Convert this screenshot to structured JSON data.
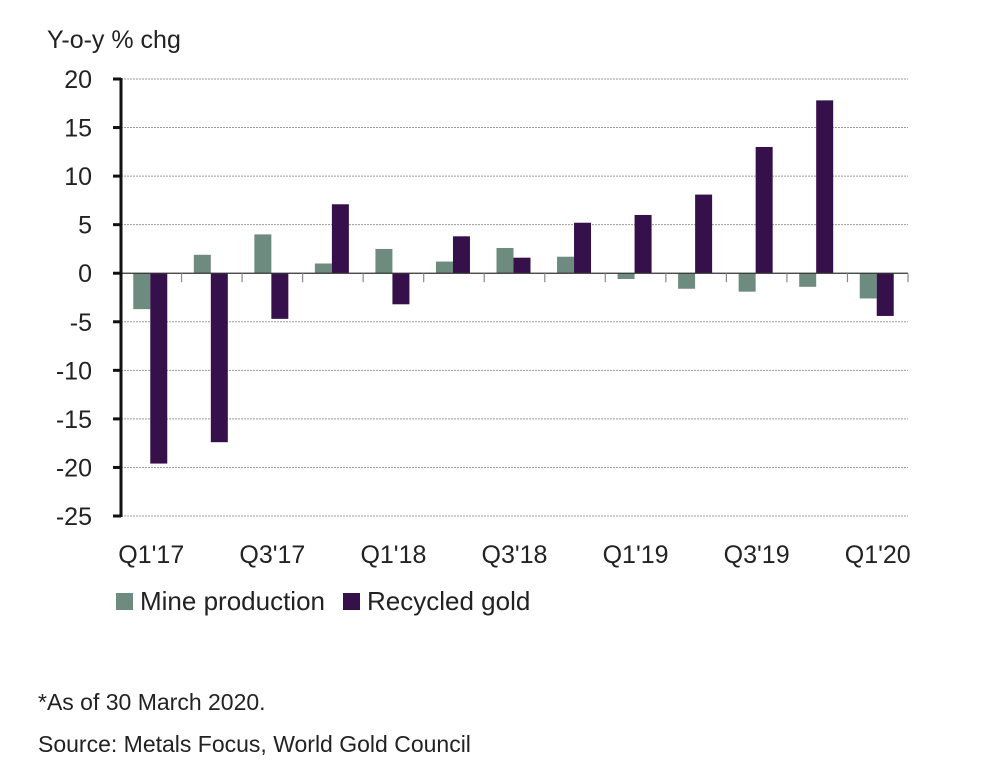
{
  "chart_data": {
    "type": "bar",
    "title": "",
    "ylabel": "Y-o-y % chg",
    "xlabel": "",
    "ylim": [
      -25,
      20
    ],
    "yticks": [
      20,
      15,
      10,
      5,
      0,
      -5,
      -10,
      -15,
      -20,
      -25
    ],
    "grid": true,
    "categories": [
      "Q1'17",
      "Q2'17",
      "Q3'17",
      "Q4'17",
      "Q1'18",
      "Q2'18",
      "Q3'18",
      "Q4'18",
      "Q1'19",
      "Q2'19",
      "Q3'19",
      "Q4'19",
      "Q1'20"
    ],
    "xtick_labels": [
      "Q1'17",
      "Q3'17",
      "Q1'18",
      "Q3'18",
      "Q1'19",
      "Q3'19",
      "Q1'20"
    ],
    "series": [
      {
        "name": "Mine production",
        "color": "#6e8b80",
        "values": [
          -3.7,
          1.9,
          4.0,
          1.0,
          2.5,
          1.2,
          2.6,
          1.7,
          -0.6,
          -1.6,
          -1.9,
          -1.4,
          -2.6
        ]
      },
      {
        "name": "Recycled gold",
        "color": "#36104a",
        "values": [
          -19.6,
          -17.4,
          -4.7,
          7.1,
          -3.2,
          3.8,
          1.6,
          5.2,
          6.0,
          8.1,
          13.0,
          17.8,
          -4.4
        ]
      }
    ],
    "legend_position": "bottom-left"
  },
  "footnotes": {
    "note": "*As of 30 March 2020.",
    "source": "Source: Metals Focus, World Gold Council"
  }
}
